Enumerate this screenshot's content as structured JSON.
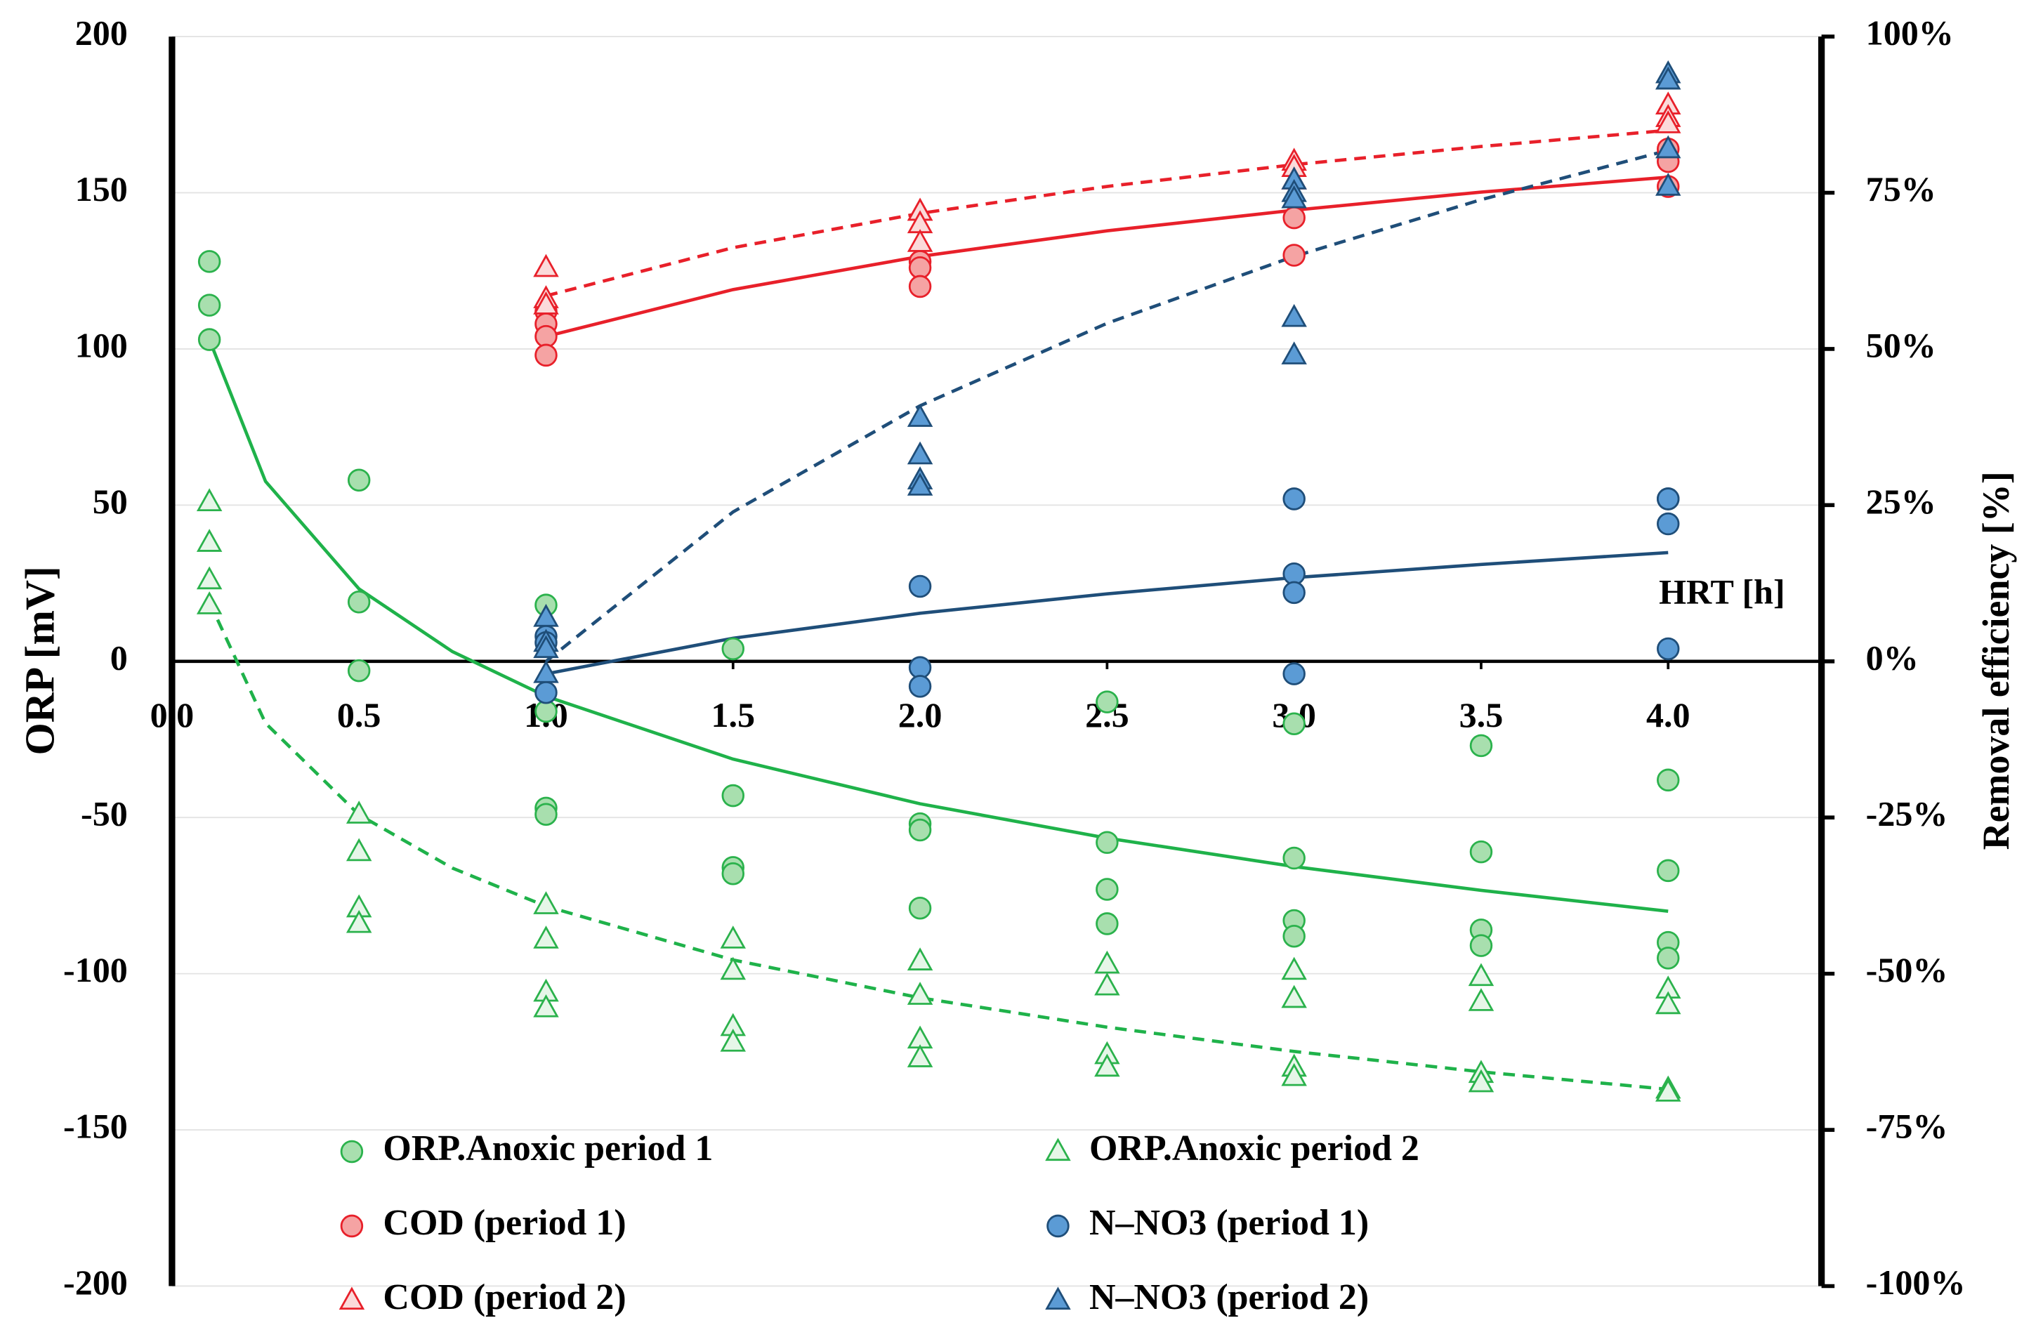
{
  "chart_data": {
    "type": "scatter",
    "xlabel": "HRT [h]",
    "ylabel": "ORP [mV]",
    "y2label": "Removal efficiency [%]",
    "xlim": [
      0,
      4.41
    ],
    "ylim": [
      -200,
      200
    ],
    "y2lim": [
      -100,
      100
    ],
    "xticks": [
      {
        "value": 0,
        "label": "0.0"
      },
      {
        "value": 0.5,
        "label": "0.5"
      },
      {
        "value": 1,
        "label": "1.0"
      },
      {
        "value": 1.5,
        "label": "1.5"
      },
      {
        "value": 2,
        "label": "2.0"
      },
      {
        "value": 2.5,
        "label": "2.5"
      },
      {
        "value": 3,
        "label": "3.0"
      },
      {
        "value": 3.5,
        "label": "3.5"
      },
      {
        "value": 4,
        "label": "4.0"
      }
    ],
    "yticks": [
      -200,
      -150,
      -100,
      -50,
      0,
      50,
      100,
      150,
      200
    ],
    "y2ticks": [
      {
        "value": -100,
        "label": "-100%"
      },
      {
        "value": -75,
        "label": "-75%"
      },
      {
        "value": -50,
        "label": "-50%"
      },
      {
        "value": -25,
        "label": "-25%"
      },
      {
        "value": 0,
        "label": "0%"
      },
      {
        "value": 25,
        "label": "25%"
      },
      {
        "value": 50,
        "label": "50%"
      },
      {
        "value": 75,
        "label": "75%"
      },
      {
        "value": 100,
        "label": "100%"
      }
    ],
    "grid": true,
    "series": [
      {
        "name": "ORP.Anoxic period 1",
        "marker": "circle",
        "color": "#2bb24c",
        "fill": "#a8dfae",
        "x": [
          0.1,
          0.1,
          0.1,
          0.5,
          0.5,
          0.5,
          1,
          1,
          1,
          1,
          1.5,
          1.5,
          1.5,
          1.5,
          2,
          2,
          2,
          2.5,
          2.5,
          2.5,
          2.5,
          3,
          3,
          3,
          3,
          3.5,
          3.5,
          3.5,
          3.5,
          4,
          4,
          4,
          4
        ],
        "values": [
          128,
          114,
          103,
          58,
          19,
          -3,
          18,
          -16,
          -47,
          -49,
          4,
          -43,
          -66,
          -68,
          -52,
          -54,
          -79,
          -13,
          -58,
          -73,
          -84,
          -20,
          -63,
          -83,
          -88,
          -27,
          -61,
          -86,
          -91,
          -38,
          -67,
          -90,
          -95
        ]
      },
      {
        "name": "ORP.Anoxic period 2",
        "marker": "triangle",
        "color": "#2bb24c",
        "fill": "#e6f6e8",
        "x": [
          0.1,
          0.1,
          0.1,
          0.1,
          0.5,
          0.5,
          0.5,
          0.5,
          1,
          1,
          1,
          1,
          1.5,
          1.5,
          1.5,
          1.5,
          2,
          2,
          2,
          2,
          2.5,
          2.5,
          2.5,
          2.5,
          3,
          3,
          3,
          3,
          3.5,
          3.5,
          3.5,
          3.5,
          4,
          4,
          4,
          4
        ],
        "values": [
          51,
          38,
          26,
          18,
          -49,
          -61,
          -79,
          -84,
          -78,
          -89,
          -106,
          -111,
          -89,
          -99,
          -117,
          -122,
          -96,
          -107,
          -121,
          -127,
          -97,
          -104,
          -126,
          -130,
          -99,
          -108,
          -130,
          -133,
          -101,
          -109,
          -132,
          -135,
          -105,
          -110,
          -137,
          -138
        ]
      },
      {
        "name": "COD (period 1)",
        "marker": "circle",
        "axis": "y2",
        "color": "#e8202a",
        "fill": "#f5a3a3",
        "x": [
          1,
          1,
          1,
          1,
          2,
          2,
          2,
          3,
          3,
          4,
          4,
          4
        ],
        "values": [
          56,
          54,
          52,
          49,
          64,
          63,
          60,
          71,
          65,
          82,
          80,
          76
        ]
      },
      {
        "name": "N–NO3 (period 1)",
        "marker": "circle",
        "axis": "y2",
        "color": "#1f4e79",
        "fill": "#5b9bd5",
        "x": [
          1,
          1,
          1,
          2,
          2,
          2,
          3,
          3,
          3,
          3,
          4,
          4,
          4,
          4
        ],
        "values": [
          4,
          3,
          -5,
          12,
          -1,
          -4,
          26,
          14,
          11,
          -2,
          26,
          26,
          22,
          2
        ]
      },
      {
        "name": "COD (period 2)",
        "marker": "triangle",
        "axis": "y2",
        "color": "#e8202a",
        "fill": "#fbdada",
        "x": [
          1,
          1,
          1,
          2,
          2,
          2,
          2,
          3,
          3,
          3,
          4,
          4,
          4
        ],
        "values": [
          63,
          58,
          57,
          72,
          72,
          70,
          67,
          80,
          79,
          77,
          89,
          87,
          86
        ]
      },
      {
        "name": "N–NO3 (period 2)",
        "marker": "triangle",
        "axis": "y2",
        "color": "#1f4e79",
        "fill": "#5b9bd5",
        "x": [
          1,
          1,
          1,
          1,
          2,
          2,
          2,
          2,
          3,
          3,
          3,
          3,
          3,
          4,
          4,
          4,
          4
        ],
        "values": [
          7,
          3,
          2,
          -2,
          39,
          33,
          29,
          28,
          77,
          75,
          74,
          55,
          49,
          94,
          93,
          82,
          76
        ]
      }
    ],
    "trendlines": [
      {
        "color": "#1fb24a",
        "style": "solid",
        "x": [
          0.1,
          0.25,
          0.5,
          0.75,
          1,
          1.5,
          2,
          2.5,
          3,
          3.5,
          4
        ],
        "values": [
          103,
          57.6,
          23.2,
          3.1,
          -11.2,
          -31.3,
          -45.6,
          -56.6,
          -65.7,
          -73.3,
          -80
        ]
      },
      {
        "color": "#1fb24a",
        "style": "dashed",
        "x": [
          0.1,
          0.25,
          0.5,
          0.75,
          1,
          1.5,
          2,
          2.5,
          3,
          3.5,
          4
        ],
        "values": [
          19,
          -19.8,
          -49.1,
          -66.2,
          -78.4,
          -95.6,
          -107.7,
          -117.1,
          -124.9,
          -131.4,
          -137
        ]
      },
      {
        "color": "#e8202a",
        "style": "solid",
        "axis": "y2",
        "x": [
          1,
          1.5,
          2,
          2.5,
          3,
          3.5,
          4
        ],
        "values": [
          52,
          59.5,
          64.8,
          68.9,
          72.2,
          75.1,
          77.5
        ]
      },
      {
        "color": "#e8202a",
        "style": "dashed",
        "axis": "y2",
        "x": [
          1,
          1.5,
          2,
          2.5,
          3,
          3.5,
          4
        ],
        "values": [
          58.5,
          66.2,
          71.7,
          76,
          79.5,
          82.4,
          85
        ]
      },
      {
        "color": "#1f4e79",
        "style": "solid",
        "axis": "y2",
        "x": [
          1,
          1.5,
          2,
          2.5,
          3,
          3.5,
          4
        ],
        "values": [
          -2,
          3.7,
          7.7,
          10.8,
          13.4,
          15.5,
          17.4
        ]
      },
      {
        "color": "#1f4e79",
        "style": "dashed",
        "axis": "y2",
        "x": [
          1,
          1.5,
          2,
          2.5,
          3,
          3.5,
          4
        ],
        "values": [
          0,
          23.9,
          40.9,
          54.1,
          64.8,
          73.9,
          81.8
        ]
      }
    ]
  }
}
